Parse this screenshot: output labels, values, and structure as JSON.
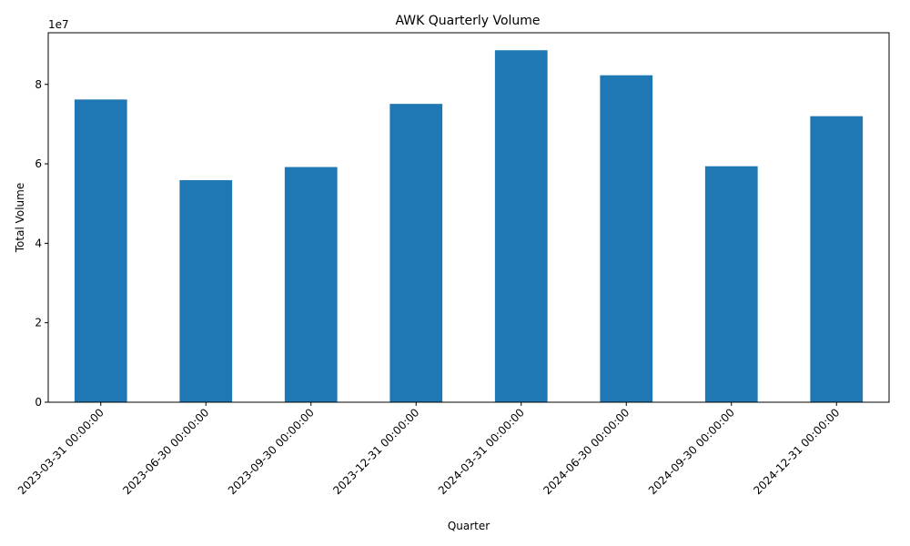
{
  "chart_data": {
    "type": "bar",
    "title": "AWK Quarterly Volume",
    "xlabel": "Quarter",
    "ylabel": "Total Volume",
    "offset_label": "1e7",
    "categories": [
      "2023-03-31 00:00:00",
      "2023-06-30 00:00:00",
      "2023-09-30 00:00:00",
      "2023-12-31 00:00:00",
      "2024-03-31 00:00:00",
      "2024-06-30 00:00:00",
      "2024-09-30 00:00:00",
      "2024-12-31 00:00:00"
    ],
    "values": [
      76200000,
      55900000,
      59200000,
      75100000,
      88600000,
      82300000,
      59400000,
      72000000
    ],
    "yticks": [
      0,
      20000000,
      40000000,
      60000000,
      80000000
    ],
    "ytick_labels": [
      "0",
      "2",
      "4",
      "6",
      "8"
    ],
    "ylim": [
      0,
      93000000
    ],
    "bar_color": "#1f77b4",
    "grid": false,
    "legend": "none"
  }
}
